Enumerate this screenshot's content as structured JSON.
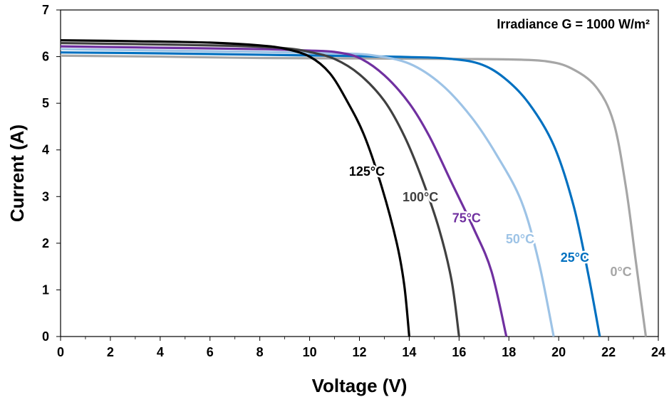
{
  "chart_data": {
    "type": "line",
    "xlabel": "Voltage (V)",
    "ylabel": "Current (A)",
    "xlim": [
      0,
      24
    ],
    "ylim": [
      0,
      7
    ],
    "xticks": [
      "0",
      "2",
      "4",
      "6",
      "8",
      "10",
      "12",
      "14",
      "16",
      "18",
      "20",
      "22",
      "24"
    ],
    "yticks": [
      "0",
      "1",
      "2",
      "3",
      "4",
      "5",
      "6",
      "7"
    ],
    "grid": false,
    "legend": "none",
    "annotation": "Irradiance G = 1000 W/m²",
    "series": [
      {
        "name": "0°C",
        "color": "#a6a6a6",
        "points": [
          [
            0,
            6.02
          ],
          [
            4,
            6.0
          ],
          [
            8,
            5.97
          ],
          [
            12,
            5.96
          ],
          [
            16,
            5.95
          ],
          [
            18,
            5.94
          ],
          [
            19.5,
            5.9
          ],
          [
            20.5,
            5.75
          ],
          [
            21.5,
            5.35
          ],
          [
            22.2,
            4.6
          ],
          [
            22.7,
            3.2
          ],
          [
            23.1,
            1.6
          ],
          [
            23.5,
            0
          ]
        ]
      },
      {
        "name": "25°C",
        "color": "#0070c0",
        "points": [
          [
            0,
            6.09
          ],
          [
            4,
            6.07
          ],
          [
            8,
            6.04
          ],
          [
            12,
            6.01
          ],
          [
            14,
            5.99
          ],
          [
            15.5,
            5.96
          ],
          [
            16.8,
            5.85
          ],
          [
            17.8,
            5.55
          ],
          [
            18.8,
            5.0
          ],
          [
            19.8,
            4.1
          ],
          [
            20.6,
            2.8
          ],
          [
            21.2,
            1.3
          ],
          [
            21.65,
            0
          ]
        ]
      },
      {
        "name": "50°C",
        "color": "#9dc3e6",
        "points": [
          [
            0,
            6.16
          ],
          [
            4,
            6.13
          ],
          [
            8,
            6.1
          ],
          [
            11,
            6.07
          ],
          [
            12.5,
            6.03
          ],
          [
            14,
            5.85
          ],
          [
            15.3,
            5.4
          ],
          [
            16.5,
            4.7
          ],
          [
            17.5,
            3.9
          ],
          [
            18.5,
            2.9
          ],
          [
            19.2,
            1.6
          ],
          [
            19.8,
            0
          ]
        ]
      },
      {
        "name": "75°C",
        "color": "#7030a0",
        "points": [
          [
            0,
            6.22
          ],
          [
            4,
            6.19
          ],
          [
            8,
            6.16
          ],
          [
            10,
            6.13
          ],
          [
            11,
            6.1
          ],
          [
            12,
            5.97
          ],
          [
            13,
            5.6
          ],
          [
            14,
            5.0
          ],
          [
            14.8,
            4.3
          ],
          [
            15.7,
            3.3
          ],
          [
            16.6,
            2.3
          ],
          [
            17.3,
            1.4
          ],
          [
            17.9,
            0
          ]
        ]
      },
      {
        "name": "100°C",
        "color": "#404040",
        "points": [
          [
            0,
            6.29
          ],
          [
            4,
            6.26
          ],
          [
            7,
            6.23
          ],
          [
            9,
            6.18
          ],
          [
            10,
            6.1
          ],
          [
            11,
            5.95
          ],
          [
            12,
            5.62
          ],
          [
            13,
            5.05
          ],
          [
            13.8,
            4.3
          ],
          [
            14.5,
            3.4
          ],
          [
            15.2,
            2.3
          ],
          [
            15.7,
            1.2
          ],
          [
            16.0,
            0
          ]
        ]
      },
      {
        "name": "125°C",
        "color": "#000000",
        "points": [
          [
            0,
            6.35
          ],
          [
            3,
            6.33
          ],
          [
            6,
            6.3
          ],
          [
            8,
            6.24
          ],
          [
            9,
            6.17
          ],
          [
            10,
            6.0
          ],
          [
            10.8,
            5.65
          ],
          [
            11.5,
            5.05
          ],
          [
            12.2,
            4.3
          ],
          [
            12.9,
            3.2
          ],
          [
            13.5,
            2.0
          ],
          [
            13.8,
            1.1
          ],
          [
            14.0,
            0
          ]
        ]
      }
    ],
    "curve_labels": [
      {
        "text": "0°C",
        "x": 22.5,
        "y": 1.3,
        "color": "#a6a6a6"
      },
      {
        "text": "25°C",
        "x": 20.65,
        "y": 1.6,
        "color": "#0070c0"
      },
      {
        "text": "50°C",
        "x": 18.45,
        "y": 2.0,
        "color": "#9dc3e6"
      },
      {
        "text": "75°C",
        "x": 16.3,
        "y": 2.45,
        "color": "#7030a0"
      },
      {
        "text": "100°C",
        "x": 14.45,
        "y": 2.9,
        "color": "#404040"
      },
      {
        "text": "125°C",
        "x": 12.3,
        "y": 3.45,
        "color": "#000000"
      }
    ]
  }
}
